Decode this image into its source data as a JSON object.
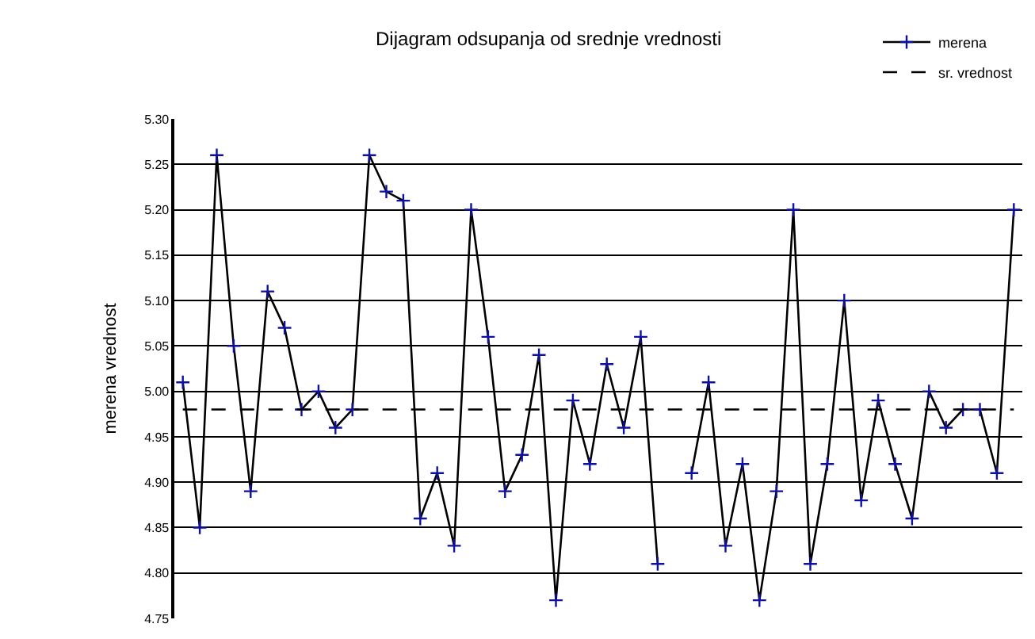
{
  "chart_data": {
    "type": "line",
    "title": "Dijagram odsupanja od srednje vrednosti",
    "ylabel": "merena vrednost",
    "categories": [
      null,
      null,
      null,
      null,
      null,
      null,
      null,
      null,
      null,
      null,
      null,
      null,
      null,
      null,
      null,
      null,
      null,
      null,
      null,
      null,
      null,
      null,
      null,
      null,
      null,
      null,
      null,
      null,
      null,
      null,
      null,
      null,
      null,
      null,
      null,
      null,
      null,
      null,
      null,
      null,
      null,
      null,
      null,
      null,
      null,
      null,
      null,
      null,
      null,
      null
    ],
    "series": [
      {
        "name": "merena",
        "color": "#000000",
        "marker": "cross",
        "line_style": "solid",
        "values": [
          5.01,
          4.85,
          5.26,
          5.05,
          4.89,
          5.11,
          5.07,
          4.98,
          5.0,
          4.96,
          4.98,
          5.26,
          5.22,
          5.21,
          4.86,
          4.91,
          4.83,
          5.2,
          5.06,
          4.89,
          4.93,
          5.04,
          4.77,
          4.99,
          4.92,
          5.03,
          4.96,
          5.06,
          4.81,
          null,
          4.91,
          5.01,
          4.83,
          4.92,
          4.77,
          4.89,
          5.2,
          4.81,
          4.92,
          5.1,
          4.88,
          4.99,
          4.92,
          4.86,
          5.0,
          4.96,
          4.98,
          4.98,
          4.91,
          5.2
        ]
      },
      {
        "name": "sr. vrednost",
        "color": "#000000",
        "marker": "none",
        "line_style": "dashed",
        "values": [
          4.98,
          4.98,
          4.98,
          4.98,
          4.98,
          4.98,
          4.98,
          4.98,
          4.98,
          4.98,
          4.98,
          4.98,
          4.98,
          4.98,
          4.98,
          4.98,
          4.98,
          4.98,
          4.98,
          4.98,
          4.98,
          4.98,
          4.98,
          4.98,
          4.98,
          4.98,
          4.98,
          4.98,
          4.98,
          4.98,
          4.98,
          4.98,
          4.98,
          4.98,
          4.98,
          4.98,
          4.98,
          4.98,
          4.98,
          4.98,
          4.98,
          4.98,
          4.98,
          4.98,
          4.98,
          4.98,
          4.98,
          4.98,
          4.98,
          4.98
        ]
      }
    ],
    "ylim": [
      4.75,
      5.3
    ],
    "yticks": [
      {
        "value": 4.75,
        "label": "4.75"
      },
      {
        "value": 4.8,
        "label": "4.80"
      },
      {
        "value": 4.85,
        "label": "4.85"
      },
      {
        "value": 4.9,
        "label": "4.90"
      },
      {
        "value": 4.95,
        "label": "4.95"
      },
      {
        "value": 5.0,
        "label": "5.00"
      },
      {
        "value": 5.05,
        "label": "5.05"
      },
      {
        "value": 5.1,
        "label": "5.10"
      },
      {
        "value": 5.15,
        "label": "5.15"
      },
      {
        "value": 5.2,
        "label": "5.20"
      },
      {
        "value": 5.25,
        "label": "5.25"
      },
      {
        "value": 5.3,
        "label": "5.30"
      }
    ],
    "grid": "y",
    "legend": "top right"
  }
}
